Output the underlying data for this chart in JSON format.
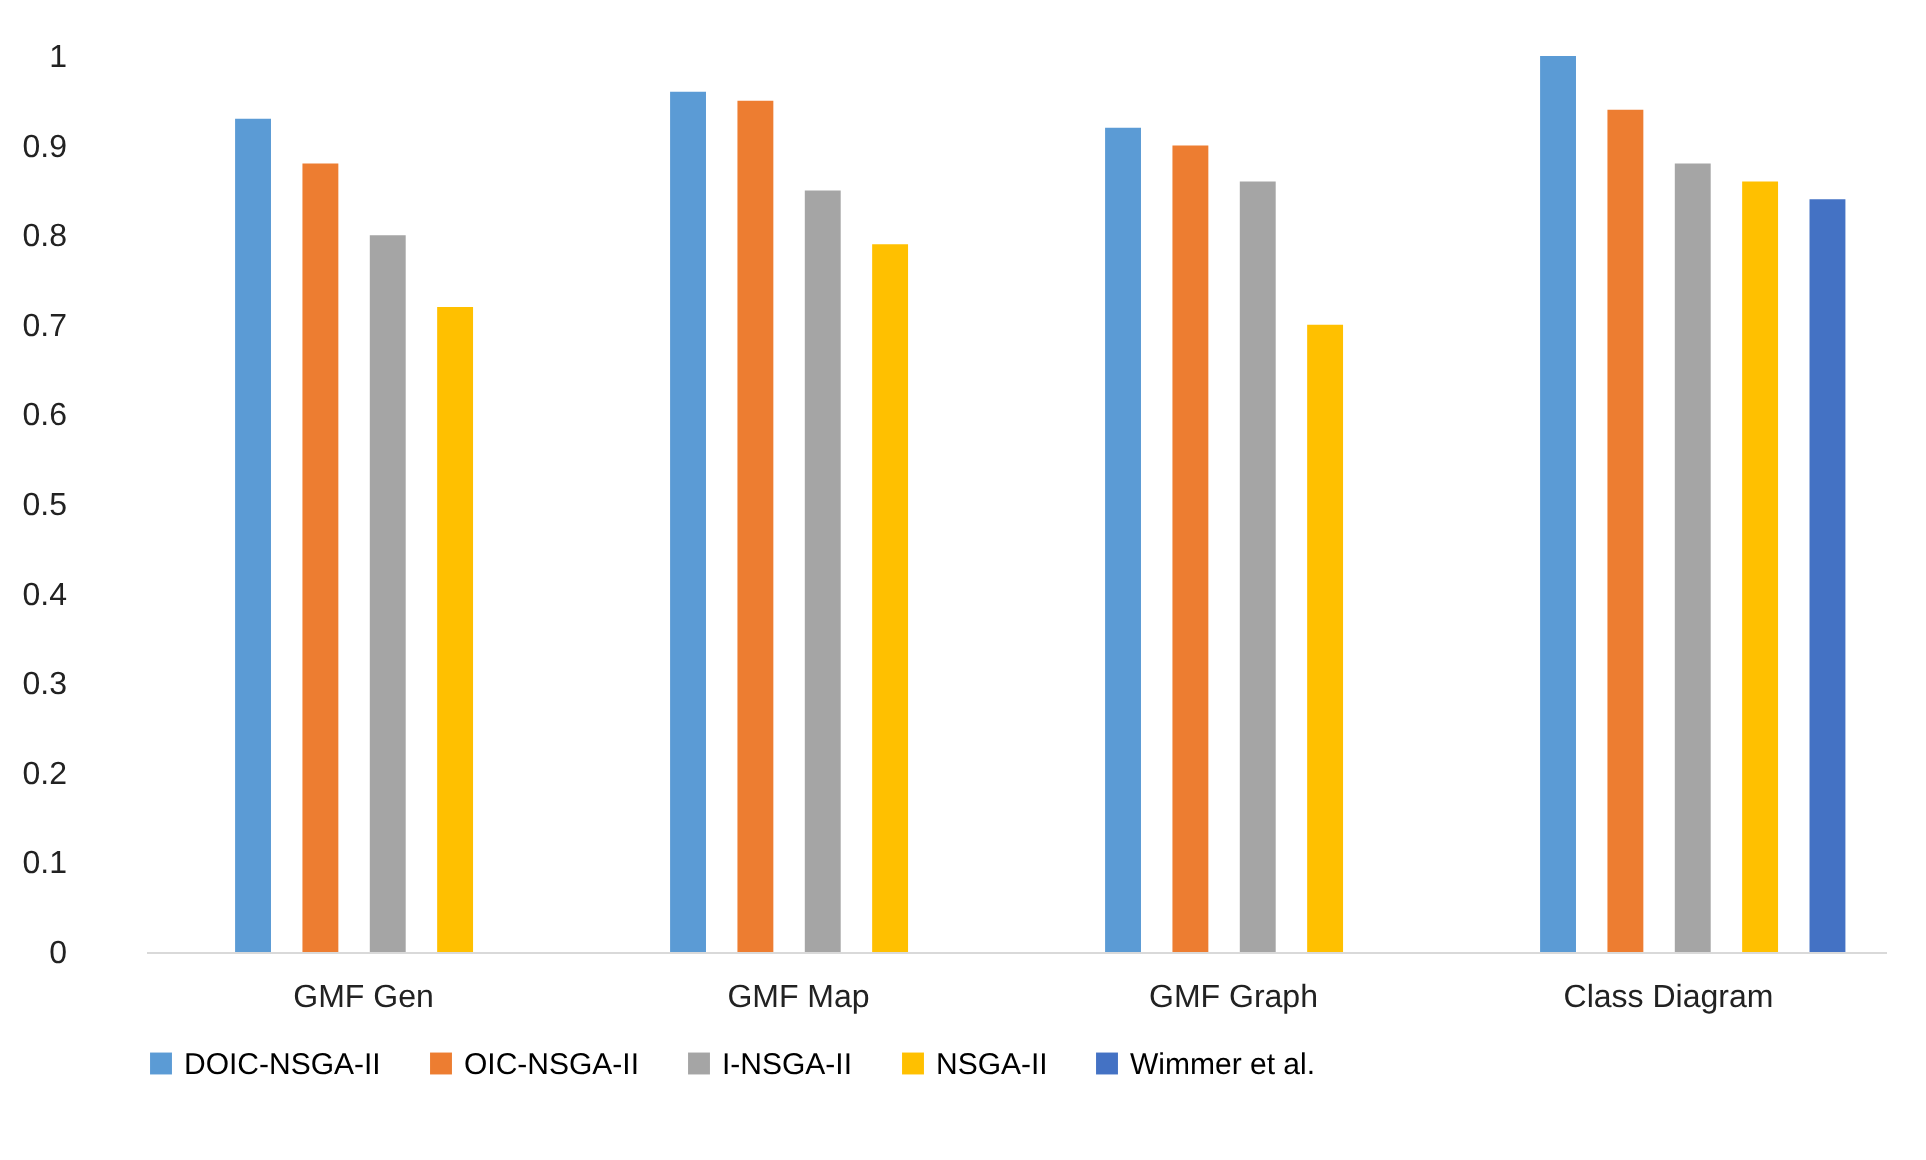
{
  "chart_data": {
    "type": "bar",
    "categories": [
      "GMF Gen",
      "GMF Map",
      "GMF Graph",
      "Class Diagram"
    ],
    "series": [
      {
        "name": "DOIC-NSGA-II",
        "color": "#5b9bd5",
        "values": [
          0.93,
          0.96,
          0.92,
          1.0
        ]
      },
      {
        "name": "OIC-NSGA-II",
        "color": "#ed7d31",
        "values": [
          0.88,
          0.95,
          0.9,
          0.94
        ]
      },
      {
        "name": "I-NSGA-II",
        "color": "#a5a5a5",
        "values": [
          0.8,
          0.85,
          0.86,
          0.88
        ]
      },
      {
        "name": "NSGA-II",
        "color": "#ffc000",
        "values": [
          0.72,
          0.79,
          0.7,
          0.86
        ]
      },
      {
        "name": "Wimmer et al.",
        "color": "#4472c4",
        "values": [
          null,
          null,
          null,
          0.84
        ]
      }
    ],
    "ylim": [
      0,
      1
    ],
    "yticks": [
      0,
      0.1,
      0.2,
      0.3,
      0.4,
      0.5,
      0.6,
      0.7,
      0.8,
      0.9,
      1
    ],
    "grid": false,
    "legend": "bottom"
  }
}
